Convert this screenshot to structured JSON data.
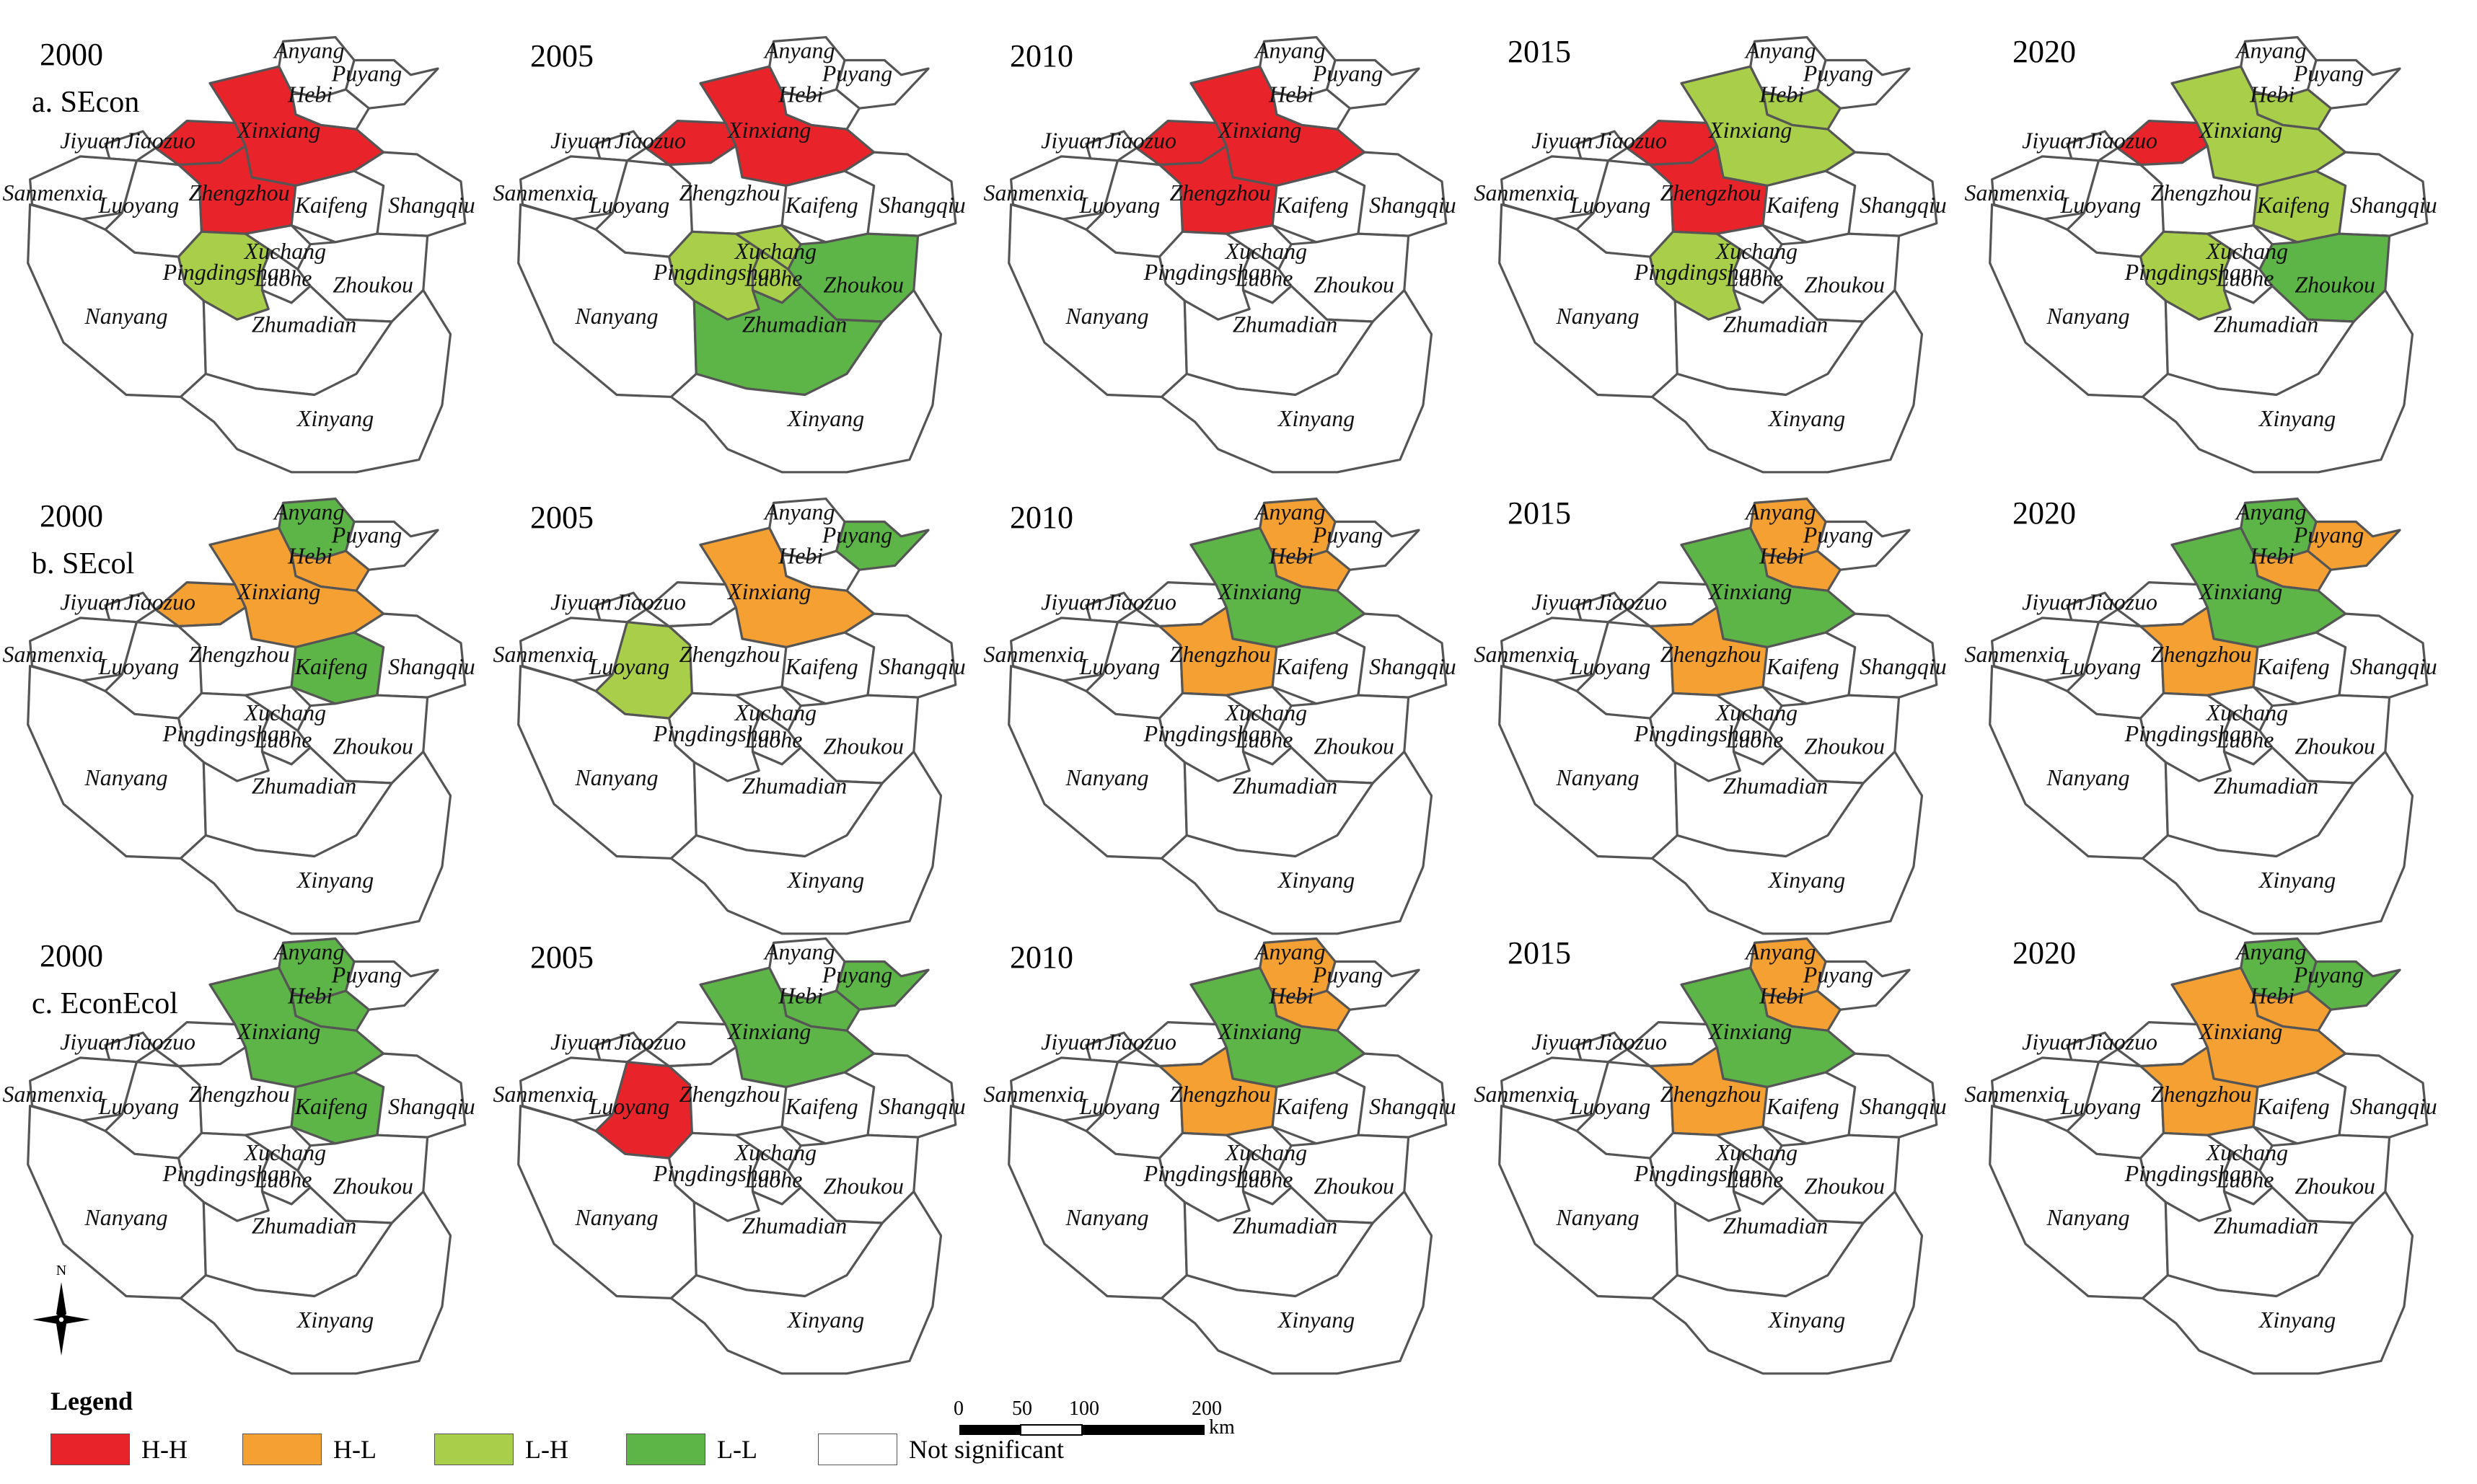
{
  "years": [
    "2000",
    "2005",
    "2010",
    "2015",
    "2020"
  ],
  "rows": [
    {
      "label": "a. SEcon",
      "classes": {
        "2000": {
          "Xinxiang": "H-H",
          "Zhengzhou": "H-H",
          "Jiaozuo": "H-H",
          "Pingdingshan": "L-H"
        },
        "2005": {
          "Xinxiang": "H-H",
          "Jiaozuo": "H-H",
          "Pingdingshan": "L-H",
          "Xuchang": "L-H",
          "Luohe": "L-H",
          "Zhoukou": "L-L",
          "Zhumadian": "L-L"
        },
        "2010": {
          "Xinxiang": "H-H",
          "Zhengzhou": "H-H",
          "Jiaozuo": "H-H"
        },
        "2015": {
          "Xinxiang": "L-H",
          "Hebi": "L-H",
          "Zhengzhou": "H-H",
          "Jiaozuo": "H-H",
          "Pingdingshan": "L-H"
        },
        "2020": {
          "Jiaozuo": "H-H",
          "Xinxiang": "L-H",
          "Hebi": "L-H",
          "Kaifeng": "L-H",
          "Pingdingshan": "L-H",
          "Zhoukou": "L-L"
        }
      }
    },
    {
      "label": "b. SEcol",
      "classes": {
        "2000": {
          "Anyang": "L-L",
          "Hebi": "H-L",
          "Xinxiang": "H-L",
          "Jiaozuo": "H-L",
          "Kaifeng": "L-L"
        },
        "2005": {
          "Puyang": "L-L",
          "Xinxiang": "H-L",
          "Luoyang": "L-H"
        },
        "2010": {
          "Anyang": "H-L",
          "Hebi": "H-L",
          "Xinxiang": "L-L",
          "Zhengzhou": "H-L"
        },
        "2015": {
          "Anyang": "H-L",
          "Hebi": "H-L",
          "Xinxiang": "L-L",
          "Zhengzhou": "H-L"
        },
        "2020": {
          "Anyang": "L-L",
          "Puyang": "H-L",
          "Hebi": "H-L",
          "Xinxiang": "L-L",
          "Zhengzhou": "H-L"
        }
      }
    },
    {
      "label": "c. EconEcol",
      "classes": {
        "2000": {
          "Anyang": "L-L",
          "Hebi": "L-L",
          "Xinxiang": "L-L",
          "Kaifeng": "L-L"
        },
        "2005": {
          "Puyang": "L-L",
          "Hebi": "L-L",
          "Xinxiang": "L-L",
          "Luoyang": "H-H"
        },
        "2010": {
          "Anyang": "H-L",
          "Hebi": "H-L",
          "Xinxiang": "L-L",
          "Zhengzhou": "H-L"
        },
        "2015": {
          "Anyang": "H-L",
          "Hebi": "H-L",
          "Xinxiang": "L-L",
          "Zhengzhou": "H-L"
        },
        "2020": {
          "Anyang": "L-L",
          "Puyang": "L-L",
          "Hebi": "H-L",
          "Xinxiang": "H-L",
          "Zhengzhou": "H-L"
        }
      }
    }
  ],
  "city_labels": [
    "Anyang",
    "Puyang",
    "Hebi",
    "Xinxiang",
    "Jiyuan",
    "Jiaozuo",
    "Zhengzhou",
    "Kaifeng",
    "Sanmenxia",
    "Luoyang",
    "Shangqiu",
    "Xuchang",
    "Pingdingshan",
    "Luohe",
    "Zhoukou",
    "Nanyang",
    "Zhumadian",
    "Xinyang"
  ],
  "north_label": "N",
  "legend": {
    "title": "Legend",
    "items": [
      {
        "label": "H-H",
        "color": "#e8232a"
      },
      {
        "label": "H-L",
        "color": "#f5a033"
      },
      {
        "label": "L-H",
        "color": "#a9cf4a"
      },
      {
        "label": "L-L",
        "color": "#5db548"
      },
      {
        "label": "Not significant",
        "color": "#ffffff"
      }
    ]
  },
  "scale_bar": {
    "ticks": [
      "0",
      "50",
      "100",
      "200"
    ],
    "unit": "km"
  }
}
